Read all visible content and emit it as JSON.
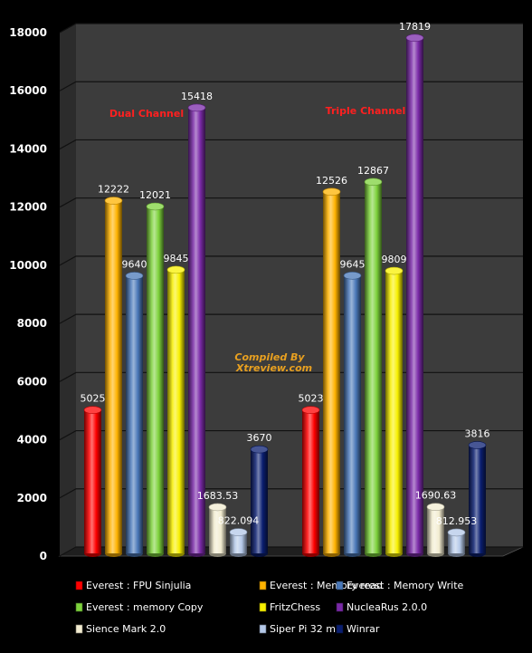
{
  "chart_data": {
    "type": "bar",
    "categories": [
      "Dual Channel",
      "Triple Channel"
    ],
    "ylim": [
      0,
      18000
    ],
    "yticks": [
      0,
      2000,
      4000,
      6000,
      8000,
      10000,
      12000,
      14000,
      16000,
      18000
    ],
    "grid": true,
    "legend_position": "bottom",
    "series": [
      {
        "name": "Everest : FPU Sinjulia",
        "values": [
          5025,
          5023
        ],
        "labels": [
          "5025",
          "5023"
        ],
        "color": "#ff0000"
      },
      {
        "name": "Everest : Memory read",
        "values": [
          12222,
          12526
        ],
        "labels": [
          "12222",
          "12526"
        ],
        "color": "#ffb300"
      },
      {
        "name": "Everest : Memory Write",
        "values": [
          9640,
          9645
        ],
        "labels": [
          "9640",
          "9645"
        ],
        "color": "#4a78b8"
      },
      {
        "name": "Everest : memory Copy",
        "values": [
          12021,
          12867
        ],
        "labels": [
          "12021",
          "12867"
        ],
        "color": "#7ed23c"
      },
      {
        "name": "FritzChess",
        "values": [
          9845,
          9809
        ],
        "labels": [
          "9845",
          "9809"
        ],
        "color": "#f8f000"
      },
      {
        "name": "NucleaRus 2.0.0",
        "values": [
          15418,
          17819
        ],
        "labels": [
          "15418",
          "17819"
        ],
        "color": "#7a2aa8"
      },
      {
        "name": "Sience Mark 2.0",
        "values": [
          1683.53,
          1690.63
        ],
        "labels": [
          "1683.53",
          "1690.63"
        ],
        "color": "#f2ecd0"
      },
      {
        "name": "Siper Pi 32 m",
        "values": [
          822.094,
          812.953
        ],
        "labels": [
          "822.094",
          "812.953"
        ],
        "color": "#b4c8e8"
      },
      {
        "name": "Winrar",
        "values": [
          3670,
          3816
        ],
        "labels": [
          "3670",
          "3816"
        ],
        "color": "#0a1e70"
      }
    ],
    "annotations": [
      {
        "text": "Dual Channel",
        "color": "#ff2020"
      },
      {
        "text": "Triple Channel",
        "color": "#ff2020"
      },
      {
        "text": "Compiled By",
        "color": "#e8a020"
      },
      {
        "text": "Xtreview.com",
        "color": "#e8a020"
      }
    ]
  }
}
